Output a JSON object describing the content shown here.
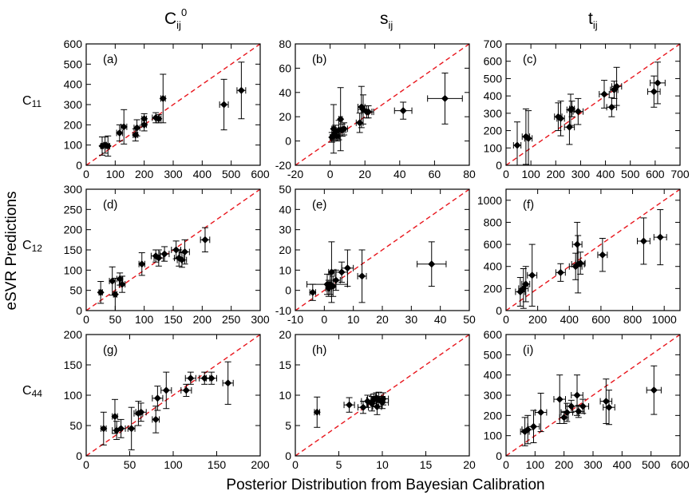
{
  "figure": {
    "column_headers": [
      {
        "base": "C",
        "sub": "ij",
        "sup": "0"
      },
      {
        "base": "s",
        "sub": "ij",
        "sup": ""
      },
      {
        "base": "t",
        "sub": "ij",
        "sup": ""
      }
    ],
    "row_headers": [
      {
        "base": "C",
        "sub": "11"
      },
      {
        "base": "C",
        "sub": "12"
      },
      {
        "base": "C",
        "sub": "44"
      }
    ],
    "ylabel": "eSVR Predictions",
    "xlabel": "Posterior Distribution from Bayesian Calibration",
    "diagonal_color": "#e8161d",
    "marker_color": "#000000"
  },
  "chart_data": [
    {
      "type": "scatter",
      "panel_label": "(a)",
      "xlim": [
        0,
        600
      ],
      "ylim": [
        0,
        600
      ],
      "xticks": [
        0,
        100,
        200,
        300,
        400,
        500,
        600
      ],
      "yticks": [
        0,
        100,
        200,
        300,
        400,
        500,
        600
      ],
      "points": [
        {
          "x": 55,
          "y": 95,
          "xerr": 5,
          "yerr": 45
        },
        {
          "x": 65,
          "y": 100,
          "xerr": 5,
          "yerr": 40
        },
        {
          "x": 75,
          "y": 95,
          "xerr": 6,
          "yerr": 50
        },
        {
          "x": 115,
          "y": 160,
          "xerr": 10,
          "yerr": 40
        },
        {
          "x": 130,
          "y": 190,
          "xerr": 10,
          "yerr": 85
        },
        {
          "x": 170,
          "y": 150,
          "xerr": 8,
          "yerr": 30
        },
        {
          "x": 175,
          "y": 185,
          "xerr": 10,
          "yerr": 40
        },
        {
          "x": 200,
          "y": 200,
          "xerr": 8,
          "yerr": 30
        },
        {
          "x": 200,
          "y": 230,
          "xerr": 8,
          "yerr": 25
        },
        {
          "x": 240,
          "y": 235,
          "xerr": 12,
          "yerr": 25
        },
        {
          "x": 250,
          "y": 230,
          "xerr": 8,
          "yerr": 20
        },
        {
          "x": 265,
          "y": 330,
          "xerr": 8,
          "yerr": 120
        },
        {
          "x": 475,
          "y": 300,
          "xerr": 15,
          "yerr": 125
        },
        {
          "x": 535,
          "y": 370,
          "xerr": 15,
          "yerr": 140
        }
      ]
    },
    {
      "type": "scatter",
      "panel_label": "(b)",
      "xlim": [
        -20,
        80
      ],
      "ylim": [
        -20,
        80
      ],
      "xticks": [
        -20,
        0,
        20,
        40,
        60,
        80
      ],
      "yticks": [
        -20,
        0,
        20,
        40,
        60,
        80
      ],
      "points": [
        {
          "x": 1,
          "y": 3,
          "xerr": 1,
          "yerr": 4
        },
        {
          "x": 2,
          "y": 5,
          "xerr": 1,
          "yerr": 5
        },
        {
          "x": 2,
          "y": 10,
          "xerr": 1,
          "yerr": 20
        },
        {
          "x": 3,
          "y": 7,
          "xerr": 1,
          "yerr": 6
        },
        {
          "x": 4,
          "y": 4,
          "xerr": 1.5,
          "yerr": 4
        },
        {
          "x": 5,
          "y": 9,
          "xerr": 1.5,
          "yerr": 8
        },
        {
          "x": 6,
          "y": 18,
          "xerr": 1,
          "yerr": 26
        },
        {
          "x": 7,
          "y": 9,
          "xerr": 2,
          "yerr": 5
        },
        {
          "x": 8,
          "y": 10,
          "xerr": 2,
          "yerr": 5
        },
        {
          "x": 17,
          "y": 15,
          "xerr": 2,
          "yerr": 8
        },
        {
          "x": 18,
          "y": 28,
          "xerr": 2,
          "yerr": 17
        },
        {
          "x": 19,
          "y": 26,
          "xerr": 3,
          "yerr": 12
        },
        {
          "x": 21,
          "y": 24,
          "xerr": 3,
          "yerr": 5
        },
        {
          "x": 22,
          "y": 24,
          "xerr": 3,
          "yerr": 5
        },
        {
          "x": 42,
          "y": 25,
          "xerr": 5,
          "yerr": 7
        },
        {
          "x": 66,
          "y": 35,
          "xerr": 10,
          "yerr": 21
        }
      ]
    },
    {
      "type": "scatter",
      "panel_label": "(c)",
      "xlim": [
        0,
        700
      ],
      "ylim": [
        0,
        700
      ],
      "xticks": [
        0,
        100,
        200,
        300,
        400,
        500,
        600,
        700
      ],
      "yticks": [
        0,
        100,
        200,
        300,
        400,
        500,
        600,
        700
      ],
      "points": [
        {
          "x": 45,
          "y": 115,
          "xerr": 15,
          "yerr": 135
        },
        {
          "x": 80,
          "y": 165,
          "xerr": 15,
          "yerr": 160
        },
        {
          "x": 90,
          "y": 155,
          "xerr": 15,
          "yerr": 160
        },
        {
          "x": 210,
          "y": 280,
          "xerr": 15,
          "yerr": 80
        },
        {
          "x": 220,
          "y": 270,
          "xerr": 15,
          "yerr": 100
        },
        {
          "x": 255,
          "y": 220,
          "xerr": 20,
          "yerr": 100
        },
        {
          "x": 260,
          "y": 320,
          "xerr": 15,
          "yerr": 90
        },
        {
          "x": 265,
          "y": 325,
          "xerr": 10,
          "yerr": 45
        },
        {
          "x": 290,
          "y": 310,
          "xerr": 20,
          "yerr": 75
        },
        {
          "x": 395,
          "y": 410,
          "xerr": 20,
          "yerr": 80
        },
        {
          "x": 425,
          "y": 335,
          "xerr": 20,
          "yerr": 55
        },
        {
          "x": 435,
          "y": 435,
          "xerr": 15,
          "yerr": 50
        },
        {
          "x": 445,
          "y": 455,
          "xerr": 20,
          "yerr": 110
        },
        {
          "x": 595,
          "y": 425,
          "xerr": 25,
          "yerr": 90
        },
        {
          "x": 610,
          "y": 475,
          "xerr": 30,
          "yerr": 120
        }
      ]
    },
    {
      "type": "scatter",
      "panel_label": "(d)",
      "xlim": [
        0,
        300
      ],
      "ylim": [
        0,
        300
      ],
      "xticks": [
        0,
        50,
        100,
        150,
        200,
        250,
        300
      ],
      "yticks": [
        0,
        50,
        100,
        150,
        200,
        250,
        300
      ],
      "points": [
        {
          "x": 25,
          "y": 45,
          "xerr": 3,
          "yerr": 27
        },
        {
          "x": 45,
          "y": 73,
          "xerr": 5,
          "yerr": 35
        },
        {
          "x": 50,
          "y": 40,
          "xerr": 3,
          "yerr": 40
        },
        {
          "x": 58,
          "y": 78,
          "xerr": 5,
          "yerr": 15
        },
        {
          "x": 62,
          "y": 65,
          "xerr": 5,
          "yerr": 20
        },
        {
          "x": 96,
          "y": 115,
          "xerr": 5,
          "yerr": 28
        },
        {
          "x": 120,
          "y": 135,
          "xerr": 8,
          "yerr": 15
        },
        {
          "x": 125,
          "y": 130,
          "xerr": 8,
          "yerr": 20
        },
        {
          "x": 135,
          "y": 140,
          "xerr": 8,
          "yerr": 18
        },
        {
          "x": 155,
          "y": 150,
          "xerr": 8,
          "yerr": 22
        },
        {
          "x": 160,
          "y": 130,
          "xerr": 8,
          "yerr": 20
        },
        {
          "x": 165,
          "y": 125,
          "xerr": 8,
          "yerr": 18
        },
        {
          "x": 170,
          "y": 145,
          "xerr": 8,
          "yerr": 30
        },
        {
          "x": 205,
          "y": 175,
          "xerr": 8,
          "yerr": 30
        }
      ]
    },
    {
      "type": "scatter",
      "panel_label": "(e)",
      "xlim": [
        -10,
        50
      ],
      "ylim": [
        -10,
        50
      ],
      "xticks": [
        -10,
        0,
        10,
        20,
        30,
        40,
        50
      ],
      "yticks": [
        -10,
        0,
        10,
        20,
        30,
        40,
        50
      ],
      "points": [
        {
          "x": -4,
          "y": -1,
          "xerr": 1,
          "yerr": 4
        },
        {
          "x": 1,
          "y": 3,
          "xerr": 7,
          "yerr": 5
        },
        {
          "x": 1.5,
          "y": 1,
          "xerr": 1,
          "yerr": 4
        },
        {
          "x": 2,
          "y": 3,
          "xerr": 1,
          "yerr": 5
        },
        {
          "x": 2.5,
          "y": 9,
          "xerr": 1,
          "yerr": 15
        },
        {
          "x": 3,
          "y": 2,
          "xerr": 1,
          "yerr": 5
        },
        {
          "x": 4,
          "y": 5,
          "xerr": 1.5,
          "yerr": 5
        },
        {
          "x": 6,
          "y": 9,
          "xerr": 2,
          "yerr": 5
        },
        {
          "x": 8,
          "y": 11,
          "xerr": 2,
          "yerr": 9
        },
        {
          "x": 13,
          "y": 7,
          "xerr": 1.5,
          "yerr": 13
        },
        {
          "x": 37,
          "y": 13,
          "xerr": 5,
          "yerr": 11
        }
      ]
    },
    {
      "type": "scatter",
      "panel_label": "(f)",
      "xlim": [
        0,
        1100
      ],
      "ylim": [
        0,
        1100
      ],
      "xticks": [
        0,
        200,
        400,
        600,
        800,
        1000
      ],
      "yticks": [
        0,
        200,
        400,
        600,
        800,
        1000
      ],
      "points": [
        {
          "x": 90,
          "y": 170,
          "xerr": 30,
          "yerr": 130
        },
        {
          "x": 110,
          "y": 200,
          "xerr": 30,
          "yerr": 180
        },
        {
          "x": 125,
          "y": 240,
          "xerr": 25,
          "yerr": 160
        },
        {
          "x": 165,
          "y": 320,
          "xerr": 30,
          "yerr": 280
        },
        {
          "x": 345,
          "y": 345,
          "xerr": 30,
          "yerr": 80
        },
        {
          "x": 440,
          "y": 400,
          "xerr": 40,
          "yerr": 120
        },
        {
          "x": 450,
          "y": 600,
          "xerr": 30,
          "yerr": 200
        },
        {
          "x": 455,
          "y": 420,
          "xerr": 40,
          "yerr": 260
        },
        {
          "x": 470,
          "y": 430,
          "xerr": 30,
          "yerr": 100
        },
        {
          "x": 610,
          "y": 505,
          "xerr": 30,
          "yerr": 150
        },
        {
          "x": 870,
          "y": 630,
          "xerr": 40,
          "yerr": 210
        },
        {
          "x": 975,
          "y": 665,
          "xerr": 40,
          "yerr": 250
        }
      ]
    },
    {
      "type": "scatter",
      "panel_label": "(g)",
      "xlim": [
        0,
        200
      ],
      "ylim": [
        0,
        200
      ],
      "xticks": [
        0,
        50,
        100,
        150,
        200
      ],
      "yticks": [
        0,
        50,
        100,
        150,
        200
      ],
      "points": [
        {
          "x": 20,
          "y": 45,
          "xerr": 3,
          "yerr": 27
        },
        {
          "x": 33,
          "y": 65,
          "xerr": 3,
          "yerr": 28
        },
        {
          "x": 35,
          "y": 42,
          "xerr": 5,
          "yerr": 15
        },
        {
          "x": 40,
          "y": 45,
          "xerr": 5,
          "yerr": 15
        },
        {
          "x": 52,
          "y": 45,
          "xerr": 4,
          "yerr": 35
        },
        {
          "x": 60,
          "y": 70,
          "xerr": 5,
          "yerr": 20
        },
        {
          "x": 63,
          "y": 72,
          "xerr": 6,
          "yerr": 15
        },
        {
          "x": 80,
          "y": 60,
          "xerr": 4,
          "yerr": 22
        },
        {
          "x": 82,
          "y": 95,
          "xerr": 6,
          "yerr": 20
        },
        {
          "x": 92,
          "y": 108,
          "xerr": 6,
          "yerr": 30
        },
        {
          "x": 115,
          "y": 108,
          "xerr": 6,
          "yerr": 10
        },
        {
          "x": 120,
          "y": 128,
          "xerr": 6,
          "yerr": 10
        },
        {
          "x": 136,
          "y": 128,
          "xerr": 6,
          "yerr": 10
        },
        {
          "x": 144,
          "y": 128,
          "xerr": 6,
          "yerr": 10
        },
        {
          "x": 163,
          "y": 120,
          "xerr": 6,
          "yerr": 35
        }
      ]
    },
    {
      "type": "scatter",
      "panel_label": "(h)",
      "xlim": [
        0,
        20
      ],
      "ylim": [
        0,
        20
      ],
      "xticks": [
        0,
        5,
        10,
        15,
        20
      ],
      "yticks": [
        0,
        5,
        10,
        15,
        20
      ],
      "points": [
        {
          "x": 2.5,
          "y": 7.2,
          "xerr": 0.3,
          "yerr": 2.5
        },
        {
          "x": 6.2,
          "y": 8.4,
          "xerr": 0.6,
          "yerr": 1.2
        },
        {
          "x": 7.8,
          "y": 8.0,
          "xerr": 0.6,
          "yerr": 1.0
        },
        {
          "x": 8.3,
          "y": 9.0,
          "xerr": 0.7,
          "yerr": 1.0
        },
        {
          "x": 8.8,
          "y": 8.6,
          "xerr": 0.6,
          "yerr": 1.2
        },
        {
          "x": 9.0,
          "y": 9.2,
          "xerr": 0.8,
          "yerr": 1.0
        },
        {
          "x": 9.3,
          "y": 9.6,
          "xerr": 0.6,
          "yerr": 0.8
        },
        {
          "x": 9.4,
          "y": 8.1,
          "xerr": 0.5,
          "yerr": 1.3
        },
        {
          "x": 9.6,
          "y": 9.3,
          "xerr": 0.7,
          "yerr": 1.2
        },
        {
          "x": 10.0,
          "y": 8.8,
          "xerr": 0.7,
          "yerr": 1.0
        },
        {
          "x": 10.1,
          "y": 9.4,
          "xerr": 0.6,
          "yerr": 1.0
        }
      ]
    },
    {
      "type": "scatter",
      "panel_label": "(i)",
      "xlim": [
        0,
        600
      ],
      "ylim": [
        0,
        600
      ],
      "xticks": [
        0,
        100,
        200,
        300,
        400,
        500,
        600
      ],
      "yticks": [
        0,
        100,
        200,
        300,
        400,
        500,
        600
      ],
      "points": [
        {
          "x": 65,
          "y": 120,
          "xerr": 15,
          "yerr": 70
        },
        {
          "x": 75,
          "y": 130,
          "xerr": 20,
          "yerr": 70
        },
        {
          "x": 95,
          "y": 145,
          "xerr": 20,
          "yerr": 80
        },
        {
          "x": 120,
          "y": 215,
          "xerr": 20,
          "yerr": 95
        },
        {
          "x": 185,
          "y": 280,
          "xerr": 20,
          "yerr": 120
        },
        {
          "x": 200,
          "y": 190,
          "xerr": 15,
          "yerr": 30
        },
        {
          "x": 210,
          "y": 215,
          "xerr": 20,
          "yerr": 45
        },
        {
          "x": 225,
          "y": 245,
          "xerr": 20,
          "yerr": 30
        },
        {
          "x": 245,
          "y": 300,
          "xerr": 20,
          "yerr": 100
        },
        {
          "x": 250,
          "y": 220,
          "xerr": 20,
          "yerr": 30
        },
        {
          "x": 265,
          "y": 245,
          "xerr": 20,
          "yerr": 35
        },
        {
          "x": 345,
          "y": 270,
          "xerr": 20,
          "yerr": 110
        },
        {
          "x": 355,
          "y": 240,
          "xerr": 20,
          "yerr": 85
        },
        {
          "x": 510,
          "y": 325,
          "xerr": 25,
          "yerr": 120
        }
      ]
    }
  ]
}
